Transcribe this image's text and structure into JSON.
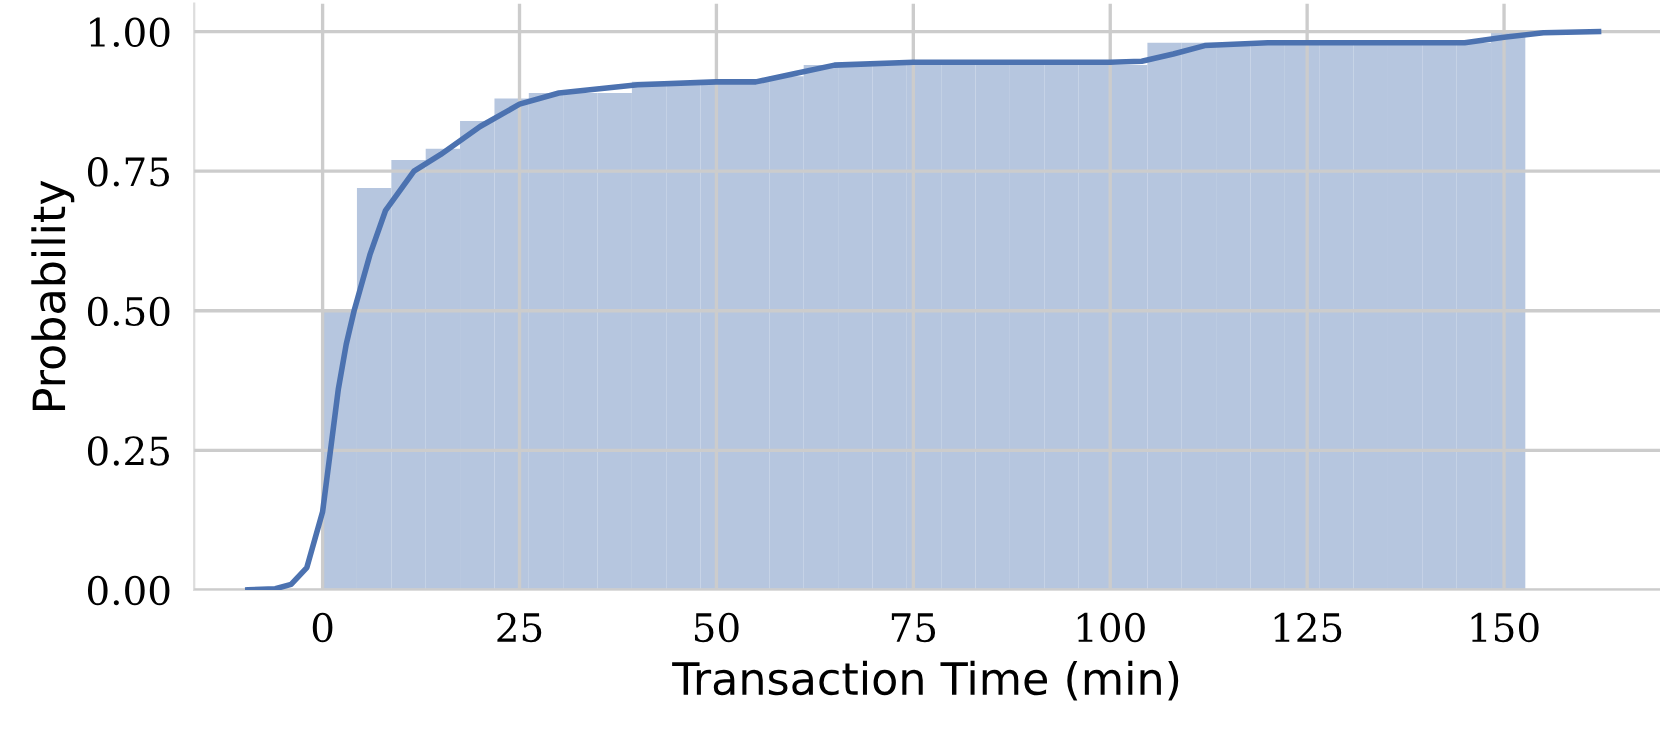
{
  "chart_data": {
    "type": "histogram",
    "xlabel": "Transaction Time (min)",
    "ylabel": "Probability",
    "series": [
      {
        "color": "#b6c6df",
        "bins": [
          0,
          4.36,
          8.73,
          13.09,
          17.45,
          21.82,
          26.18,
          30.54,
          34.9,
          39.27,
          43.63,
          47.99,
          52.36,
          56.72,
          61.08,
          65.45,
          69.81,
          74.17,
          78.54,
          82.9,
          87.26,
          91.63,
          95.99,
          100.35,
          104.72,
          109.08,
          113.44,
          117.81,
          122.17,
          126.53,
          130.9,
          135.26,
          139.62,
          143.99,
          148.35,
          152.7
        ],
        "values": [
          0.5,
          0.72,
          0.77,
          0.79,
          0.84,
          0.88,
          0.89,
          0.89,
          0.89,
          0.91,
          0.91,
          0.91,
          0.91,
          0.92,
          0.94,
          0.94,
          0.94,
          0.94,
          0.94,
          0.94,
          0.94,
          0.94,
          0.94,
          0.94,
          0.98,
          0.98,
          0.98,
          0.98,
          0.98,
          0.98,
          0.98,
          0.98,
          0.98,
          0.98,
          1.0
        ]
      },
      {
        "type": "line",
        "color": "#4c72b0",
        "x": [
          -9.5,
          -6,
          -4,
          -2,
          0,
          1,
          2,
          3,
          4,
          6,
          8,
          11.6,
          15,
          20,
          25,
          30,
          40,
          50,
          55,
          60,
          65,
          75,
          100,
          104,
          108,
          112,
          120,
          145,
          150,
          155,
          162
        ],
        "values": [
          0,
          0.002,
          0.01,
          0.04,
          0.14,
          0.25,
          0.36,
          0.44,
          0.5,
          0.6,
          0.68,
          0.75,
          0.78,
          0.83,
          0.87,
          0.89,
          0.905,
          0.91,
          0.91,
          0.925,
          0.94,
          0.945,
          0.945,
          0.947,
          0.96,
          0.975,
          0.98,
          0.98,
          0.99,
          0.998,
          1.0
        ]
      }
    ],
    "xlim": [
      -16.3,
      169.8
    ],
    "ylim": [
      0,
      1.05
    ],
    "xticks": [
      0,
      25,
      50,
      75,
      100,
      125,
      150
    ],
    "yticks": [
      {
        "value": 0,
        "label": "0.00"
      },
      {
        "value": 0.25,
        "label": "0.25"
      },
      {
        "value": 0.5,
        "label": "0.50"
      },
      {
        "value": 0.75,
        "label": "0.75"
      },
      {
        "value": 1.0,
        "label": "1.00"
      }
    ],
    "grid": true
  }
}
